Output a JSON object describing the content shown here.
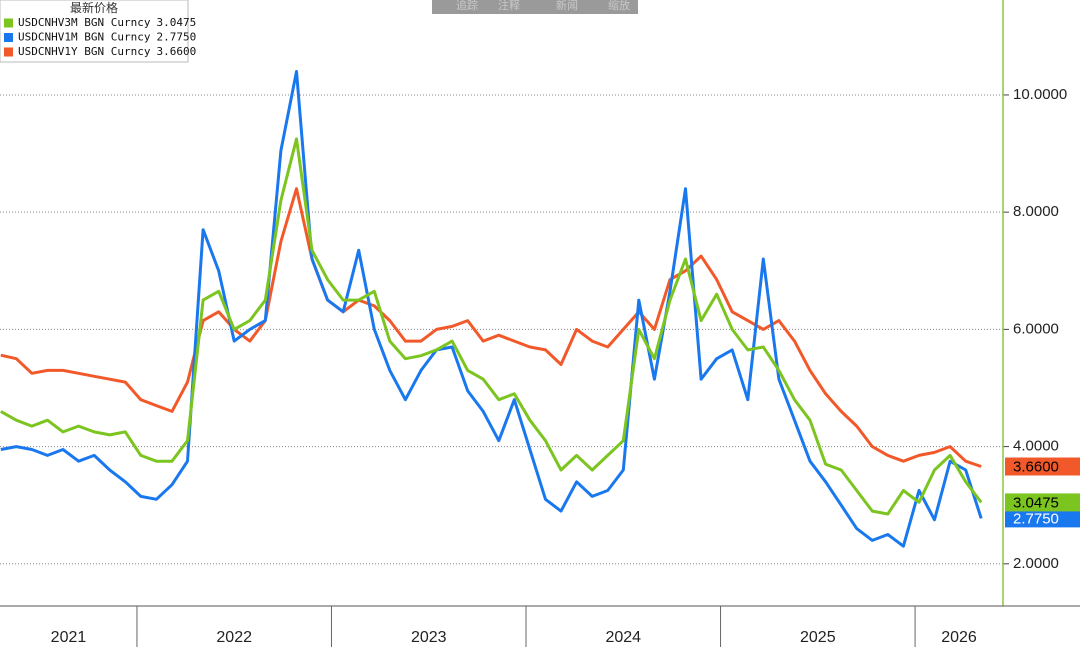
{
  "toolbar": [
    "追踪",
    "注释",
    "新闻",
    "缩放"
  ],
  "chart_data": {
    "type": "line",
    "legend_title": "最新价格",
    "x": [
      2021.3,
      2021.38,
      2021.46,
      2021.54,
      2021.62,
      2021.7,
      2021.78,
      2021.86,
      2021.94,
      2022.02,
      2022.1,
      2022.18,
      2022.26,
      2022.34,
      2022.42,
      2022.5,
      2022.58,
      2022.66,
      2022.74,
      2022.82,
      2022.9,
      2022.98,
      2023.06,
      2023.14,
      2023.22,
      2023.3,
      2023.38,
      2023.46,
      2023.54,
      2023.62,
      2023.7,
      2023.78,
      2023.86,
      2023.94,
      2024.02,
      2024.1,
      2024.18,
      2024.26,
      2024.34,
      2024.42,
      2024.5,
      2024.58,
      2024.66,
      2024.74,
      2024.82,
      2024.9,
      2024.98,
      2025.06,
      2025.14,
      2025.22,
      2025.3,
      2025.38,
      2025.46,
      2025.54,
      2025.62,
      2025.7,
      2025.78,
      2025.86,
      2025.94,
      2026.02,
      2026.1,
      2026.18,
      2026.26,
      2026.34
    ],
    "series": [
      {
        "name": "USDCNHV3M BGN Curncy",
        "color": "#7cc520",
        "text_color": "#000000",
        "values": [
          4.6,
          4.45,
          4.35,
          4.45,
          4.25,
          4.35,
          4.25,
          4.2,
          4.25,
          3.85,
          3.75,
          3.75,
          4.1,
          6.5,
          6.65,
          6.0,
          6.15,
          6.5,
          8.2,
          9.25,
          7.35,
          6.85,
          6.5,
          6.5,
          6.65,
          5.8,
          5.5,
          5.55,
          5.65,
          5.8,
          5.3,
          5.15,
          4.8,
          4.9,
          4.45,
          4.1,
          3.6,
          3.85,
          3.6,
          3.85,
          4.1,
          6.0,
          5.5,
          6.5,
          7.2,
          6.15,
          6.6,
          6.0,
          5.65,
          5.7,
          5.3,
          4.8,
          4.45,
          3.7,
          3.6,
          3.25,
          2.9,
          2.85,
          3.25,
          3.05,
          3.6,
          3.85,
          3.4,
          3.0475
        ],
        "value_labels": [
          null,
          null,
          null,
          null,
          null,
          null,
          null,
          null,
          null,
          null,
          null,
          null,
          null,
          null,
          null,
          null,
          null,
          null,
          null,
          null,
          null,
          null,
          null,
          null,
          null,
          null,
          null,
          null,
          null,
          null,
          null,
          null,
          null,
          null,
          null,
          null,
          null,
          null,
          null,
          null,
          null,
          null,
          null,
          null,
          null,
          null,
          null,
          null,
          null,
          null,
          null,
          null,
          null,
          null,
          null,
          null,
          null,
          null,
          null,
          null,
          null,
          null,
          null,
          "3.0475"
        ]
      },
      {
        "name": "USDCNHV1M BGN Curncy",
        "color": "#1a78ef",
        "text_color": "#ffffff",
        "values": [
          3.95,
          4.0,
          3.95,
          3.85,
          3.95,
          3.75,
          3.85,
          3.6,
          3.4,
          3.15,
          3.1,
          3.35,
          3.75,
          7.7,
          7.0,
          5.8,
          6.0,
          6.15,
          9.05,
          10.4,
          7.2,
          6.5,
          6.3,
          7.35,
          6.0,
          5.3,
          4.8,
          5.3,
          5.65,
          5.7,
          4.95,
          4.6,
          4.1,
          4.8,
          3.95,
          3.1,
          2.9,
          3.4,
          3.15,
          3.25,
          3.6,
          6.5,
          5.15,
          6.65,
          8.4,
          5.15,
          5.5,
          5.65,
          4.8,
          7.2,
          5.15,
          4.45,
          3.75,
          3.4,
          3.0,
          2.6,
          2.4,
          2.5,
          2.3,
          3.25,
          2.75,
          3.75,
          3.6,
          2.775
        ],
        "value_labels": [
          null,
          null,
          null,
          null,
          null,
          null,
          null,
          null,
          null,
          null,
          null,
          null,
          null,
          null,
          null,
          null,
          null,
          null,
          null,
          null,
          null,
          null,
          null,
          null,
          null,
          null,
          null,
          null,
          null,
          null,
          null,
          null,
          null,
          null,
          null,
          null,
          null,
          null,
          null,
          null,
          null,
          null,
          null,
          null,
          null,
          null,
          null,
          null,
          null,
          null,
          null,
          null,
          null,
          null,
          null,
          null,
          null,
          null,
          null,
          null,
          null,
          null,
          null,
          "2.7750"
        ]
      },
      {
        "name": "USDCNHV1Y BGN Curncy",
        "color": "#f2592a",
        "text_color": "#000000",
        "values": [
          5.56,
          5.5,
          5.25,
          5.3,
          5.3,
          5.25,
          5.2,
          5.15,
          5.1,
          4.8,
          4.7,
          4.6,
          5.1,
          6.15,
          6.3,
          6.0,
          5.8,
          6.15,
          7.5,
          8.4,
          7.2,
          6.5,
          6.3,
          6.5,
          6.4,
          6.15,
          5.8,
          5.8,
          6.0,
          6.05,
          6.15,
          5.8,
          5.9,
          5.8,
          5.7,
          5.65,
          5.4,
          6.0,
          5.8,
          5.7,
          6.0,
          6.3,
          6.0,
          6.85,
          7.0,
          7.25,
          6.85,
          6.3,
          6.15,
          6.0,
          6.15,
          5.8,
          5.3,
          4.9,
          4.6,
          4.35,
          4.0,
          3.85,
          3.75,
          3.85,
          3.9,
          4.0,
          3.75,
          3.66
        ],
        "value_labels": [
          null,
          null,
          null,
          null,
          null,
          null,
          null,
          null,
          null,
          null,
          null,
          null,
          null,
          null,
          null,
          null,
          null,
          null,
          null,
          null,
          null,
          null,
          null,
          null,
          null,
          null,
          null,
          null,
          null,
          null,
          null,
          null,
          null,
          null,
          null,
          null,
          null,
          null,
          null,
          null,
          null,
          null,
          null,
          null,
          null,
          null,
          null,
          null,
          null,
          null,
          null,
          null,
          null,
          null,
          null,
          null,
          null,
          null,
          null,
          null,
          null,
          null,
          null,
          "3.6600"
        ]
      }
    ],
    "xlim": [
      2021.296,
      2026.452
    ],
    "xticks": [
      {
        "value": 2021,
        "label": "2021"
      },
      {
        "value": 2022,
        "label": "2022"
      },
      {
        "value": 2023,
        "label": "2023"
      },
      {
        "value": 2024,
        "label": "2024"
      },
      {
        "value": 2025,
        "label": "2025"
      },
      {
        "value": 2026,
        "label": "2026"
      }
    ],
    "ylim": [
      1.28,
      11.62
    ],
    "yticks": [
      {
        "value": 2,
        "label": "2.0000"
      },
      {
        "value": 4,
        "label": "4.0000"
      },
      {
        "value": 6,
        "label": "6.0000"
      },
      {
        "value": 8,
        "label": "8.0000"
      },
      {
        "value": 10,
        "label": "10.0000"
      }
    ],
    "grid": true,
    "axis_color": "#8dc63f"
  }
}
